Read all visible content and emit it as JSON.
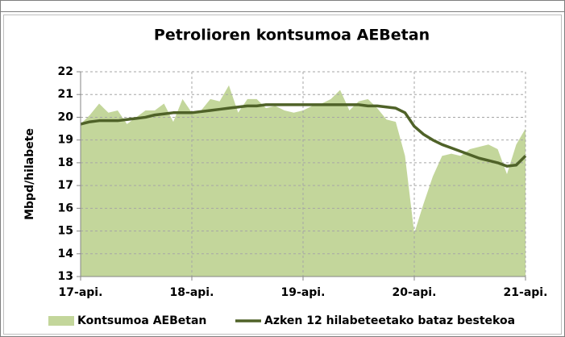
{
  "chart_data": {
    "type": "area",
    "title": "Petrolioren kontsumoa AEBetan",
    "ylabel": "Mbpd/hilabete",
    "x": [
      0,
      1,
      2,
      3,
      4,
      5,
      6,
      7,
      8,
      9,
      10,
      11,
      12,
      13,
      14,
      15,
      16,
      17,
      18,
      19,
      20,
      21,
      22,
      23,
      24,
      25,
      26,
      27,
      28,
      29,
      30,
      31,
      32,
      33,
      34,
      35,
      36,
      37,
      38,
      39,
      40,
      41,
      42,
      43,
      44,
      45,
      46,
      47,
      48
    ],
    "xlim": [
      0,
      48
    ],
    "xticks": [
      {
        "value": 0,
        "label": "17-api."
      },
      {
        "value": 12,
        "label": "18-api."
      },
      {
        "value": 24,
        "label": "19-api."
      },
      {
        "value": 36,
        "label": "20-api."
      },
      {
        "value": 48,
        "label": "21-api."
      }
    ],
    "ylim": [
      13,
      22
    ],
    "yticks": [
      13,
      14,
      15,
      16,
      17,
      18,
      19,
      20,
      21,
      22
    ],
    "grid": true,
    "series": [
      {
        "name": "Kontsumoa AEBetan",
        "type": "area",
        "color": "#c3d69b",
        "values": [
          19.7,
          20.1,
          20.6,
          20.2,
          20.3,
          19.7,
          20.0,
          20.3,
          20.3,
          20.6,
          19.8,
          20.8,
          20.2,
          20.3,
          20.8,
          20.7,
          21.4,
          20.2,
          20.8,
          20.8,
          20.4,
          20.5,
          20.3,
          20.2,
          20.3,
          20.5,
          20.6,
          20.8,
          21.2,
          20.3,
          20.7,
          20.8,
          20.4,
          19.9,
          19.8,
          18.3,
          14.9,
          16.2,
          17.4,
          18.3,
          18.4,
          18.3,
          18.6,
          18.7,
          18.8,
          18.6,
          17.5,
          18.8,
          19.5
        ]
      },
      {
        "name": "Azken 12 hilabeteetako bataz bestekoa",
        "type": "line",
        "color": "#4f6228",
        "values": [
          19.7,
          19.8,
          19.85,
          19.85,
          19.85,
          19.9,
          19.95,
          20.0,
          20.1,
          20.15,
          20.2,
          20.2,
          20.2,
          20.25,
          20.3,
          20.35,
          20.4,
          20.45,
          20.5,
          20.5,
          20.55,
          20.55,
          20.55,
          20.55,
          20.55,
          20.55,
          20.55,
          20.55,
          20.55,
          20.55,
          20.55,
          20.5,
          20.5,
          20.45,
          20.4,
          20.2,
          19.6,
          19.25,
          19.0,
          18.8,
          18.65,
          18.5,
          18.35,
          18.2,
          18.1,
          18.0,
          17.85,
          17.9,
          18.3
        ]
      }
    ]
  }
}
